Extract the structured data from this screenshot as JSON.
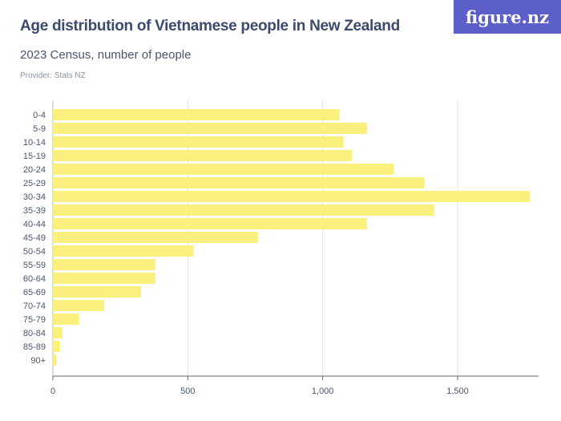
{
  "header": {
    "title": "Age distribution of Vietnamese people in New Zealand",
    "subtitle": "2023 Census, number of people",
    "provider": "Provider: Stats NZ"
  },
  "logo": {
    "text": "figure.nz",
    "color": "#5b5fc7"
  },
  "chart_data": {
    "type": "bar",
    "orientation": "horizontal",
    "title": "Age distribution of Vietnamese people in New Zealand",
    "subtitle": "2023 Census, number of people",
    "categories": [
      "0-4",
      "5-9",
      "10-14",
      "15-19",
      "20-24",
      "25-29",
      "30-34",
      "35-39",
      "40-44",
      "45-49",
      "50-54",
      "55-59",
      "60-64",
      "65-69",
      "70-74",
      "75-79",
      "80-84",
      "85-89",
      "90+"
    ],
    "values": [
      1062,
      1164,
      1077,
      1108,
      1263,
      1377,
      1767,
      1413,
      1164,
      761,
      520,
      379,
      379,
      327,
      190,
      97,
      35,
      26,
      13
    ],
    "xlim": [
      0,
      1800
    ],
    "xticks": [
      0,
      500,
      1000,
      1500
    ],
    "xtick_labels": [
      "0",
      "500",
      "1,000",
      "1,500"
    ],
    "grid": true,
    "bar_color": "#f9f07e"
  }
}
